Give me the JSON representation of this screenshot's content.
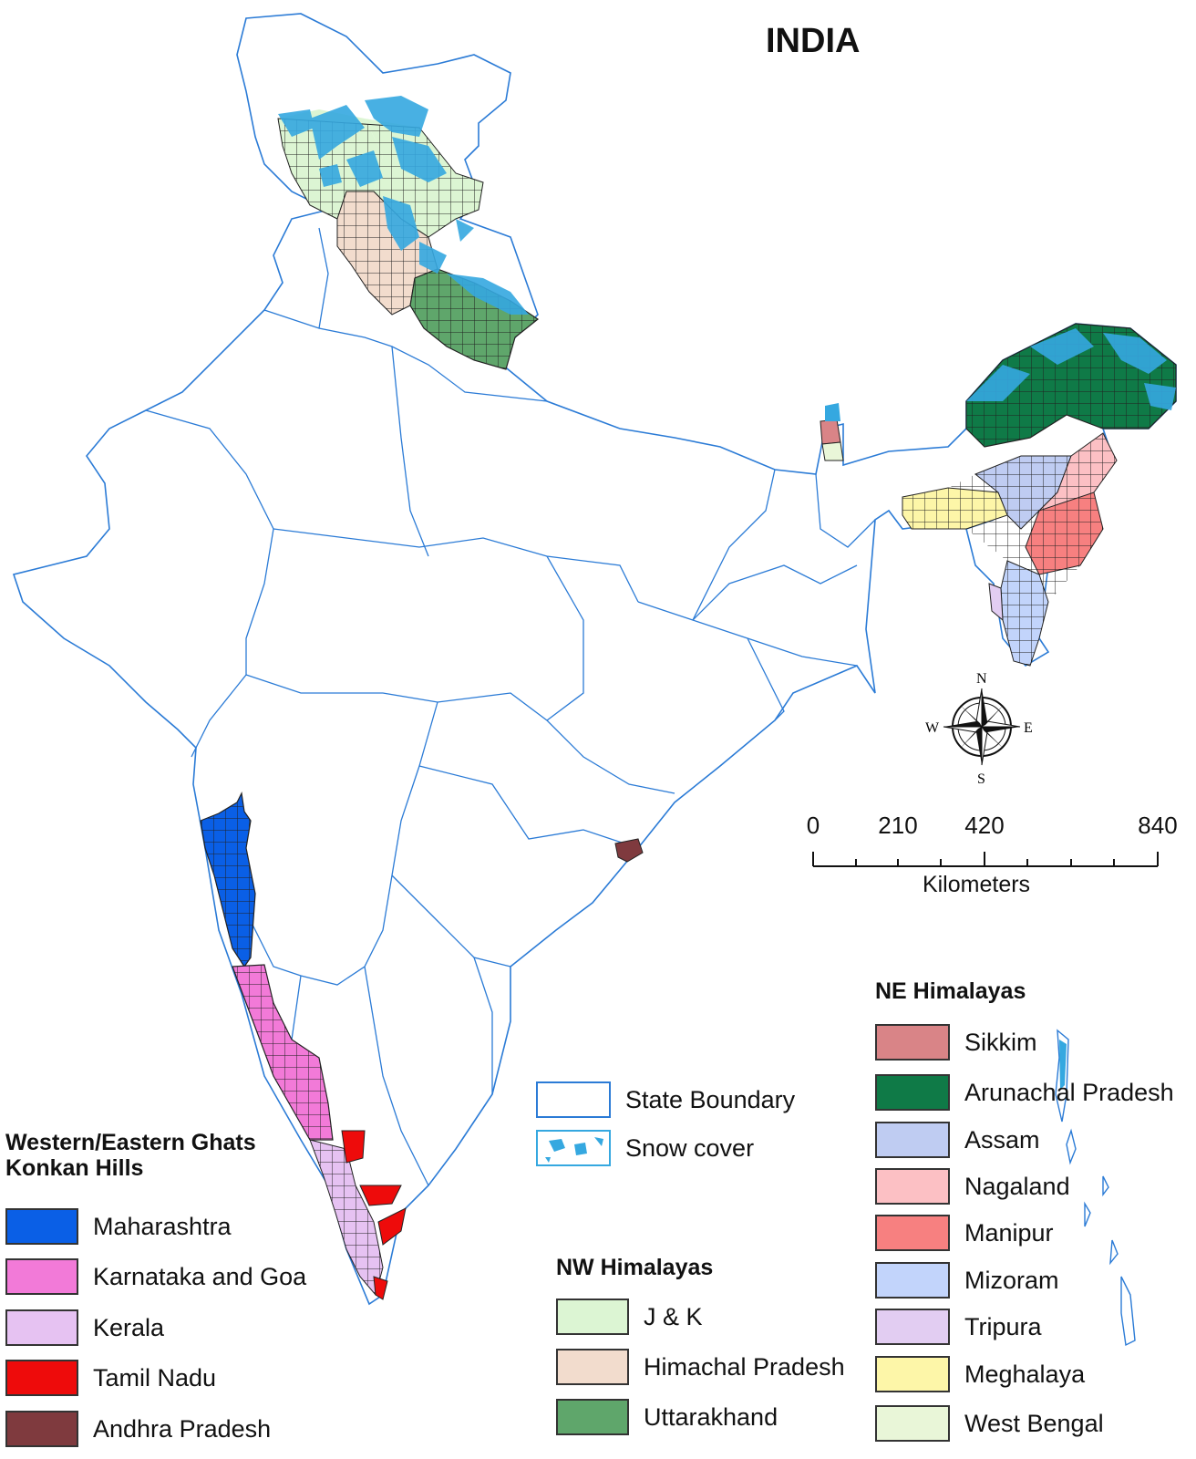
{
  "map": {
    "title": "INDIA",
    "compass": {
      "north": "N",
      "south": "S",
      "east": "E",
      "west": "W"
    },
    "scale_bar": {
      "ticks": [
        "0",
        "210",
        "420",
        "840"
      ],
      "unit": "Kilometers"
    }
  },
  "legend_boundary": {
    "items": [
      {
        "label": "State Boundary",
        "color": "#ffffff",
        "border": "#2b7bd6"
      },
      {
        "label": "Snow cover",
        "color": "#ffffff",
        "accent": "#35a8e0"
      }
    ]
  },
  "legend_ghats": {
    "heading_line1": "Western/Eastern Ghats",
    "heading_line2": "Konkan Hills",
    "items": [
      {
        "label": "Maharashtra",
        "color": "#0a5fe6"
      },
      {
        "label": "Karnataka and Goa",
        "color": "#f27ad8"
      },
      {
        "label": "Kerala",
        "color": "#e6c2f2"
      },
      {
        "label": "Tamil Nadu",
        "color": "#ee0b0b"
      },
      {
        "label": "Andhra Pradesh",
        "color": "#7f3a3e"
      }
    ]
  },
  "legend_nw": {
    "heading": "NW Himalayas",
    "items": [
      {
        "label": "J & K",
        "color": "#dcf5d3"
      },
      {
        "label": "Himachal Pradesh",
        "color": "#f2dccd"
      },
      {
        "label": "Uttarakhand",
        "color": "#5fa66b"
      }
    ]
  },
  "legend_ne": {
    "heading": "NE Himalayas",
    "items": [
      {
        "label": "Sikkim",
        "color": "#d98487"
      },
      {
        "label": "Arunachal Pradesh",
        "color": "#0f7a47"
      },
      {
        "label": "Assam",
        "color": "#bfccf2"
      },
      {
        "label": "Nagaland",
        "color": "#fcc0c4"
      },
      {
        "label": "Manipur",
        "color": "#f78080"
      },
      {
        "label": "Mizoram",
        "color": "#c2d4fb"
      },
      {
        "label": "Tripura",
        "color": "#e2cdf2"
      },
      {
        "label": "Meghalaya",
        "color": "#fdf6a8"
      },
      {
        "label": "West Bengal",
        "color": "#e9f6d8"
      }
    ]
  },
  "colors": {
    "boundary": "#2b7bd6",
    "snow": "#35a8e0"
  }
}
